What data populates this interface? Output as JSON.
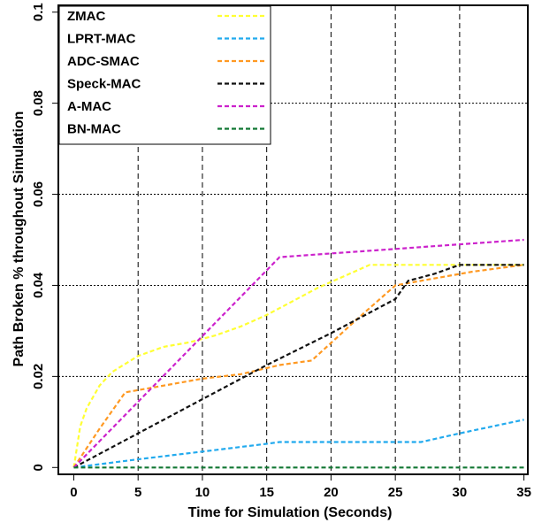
{
  "chart_data": {
    "type": "line",
    "title": "",
    "xlabel": "Time for Simulation (Seconds)",
    "ylabel": "Path Broken % throughout Simulation",
    "xlim": [
      -1.2,
      35.3
    ],
    "ylim": [
      -0.0015,
      0.1015
    ],
    "x_ticks": [
      "0",
      "5",
      "10",
      "15",
      "20",
      "25",
      "30",
      "35"
    ],
    "y_ticks": [
      "0",
      "0.02",
      "0.04",
      "0.06",
      "0.08",
      "0.1"
    ],
    "grid": true,
    "legend_position": "top-left",
    "series": [
      {
        "name": "ZMAC",
        "color": "#ffff33",
        "x": [
          0,
          0.5,
          1,
          2,
          3,
          5,
          7,
          9,
          11,
          13,
          15,
          17,
          19,
          21,
          23,
          25,
          30,
          35
        ],
        "y": [
          0,
          0.009,
          0.013,
          0.018,
          0.021,
          0.0245,
          0.0265,
          0.0275,
          0.029,
          0.031,
          0.0335,
          0.0365,
          0.0395,
          0.042,
          0.0445,
          0.0445,
          0.0445,
          0.0445
        ]
      },
      {
        "name": "LPRT-MAC",
        "color": "#22aaee",
        "x": [
          0,
          5,
          10,
          15,
          16,
          20,
          25,
          27,
          30,
          35
        ],
        "y": [
          0,
          0.0018,
          0.0035,
          0.0052,
          0.0056,
          0.0056,
          0.0056,
          0.0056,
          0.0075,
          0.0105
        ]
      },
      {
        "name": "ADC-SMAC",
        "color": "#ff9922",
        "x": [
          0,
          2,
          4,
          7,
          10,
          13,
          16,
          18.5,
          22,
          25,
          28,
          31,
          35
        ],
        "y": [
          0,
          0.0085,
          0.0165,
          0.018,
          0.0195,
          0.0205,
          0.0225,
          0.0235,
          0.0325,
          0.04,
          0.0415,
          0.043,
          0.0445
        ]
      },
      {
        "name": "Speck-MAC",
        "color": "#111111",
        "x": [
          0,
          5,
          10,
          15,
          20,
          25,
          26,
          28,
          30,
          35
        ],
        "y": [
          0,
          0.0075,
          0.015,
          0.0225,
          0.0295,
          0.037,
          0.041,
          0.0425,
          0.0445,
          0.0445
        ]
      },
      {
        "name": "A-MAC",
        "color": "#cc22cc",
        "x": [
          0,
          16,
          20,
          25,
          30,
          35
        ],
        "y": [
          0,
          0.0462,
          0.047,
          0.048,
          0.049,
          0.05
        ]
      },
      {
        "name": "BN-MAC",
        "color": "#117733",
        "x": [
          0,
          35
        ],
        "y": [
          0,
          0
        ]
      }
    ]
  }
}
